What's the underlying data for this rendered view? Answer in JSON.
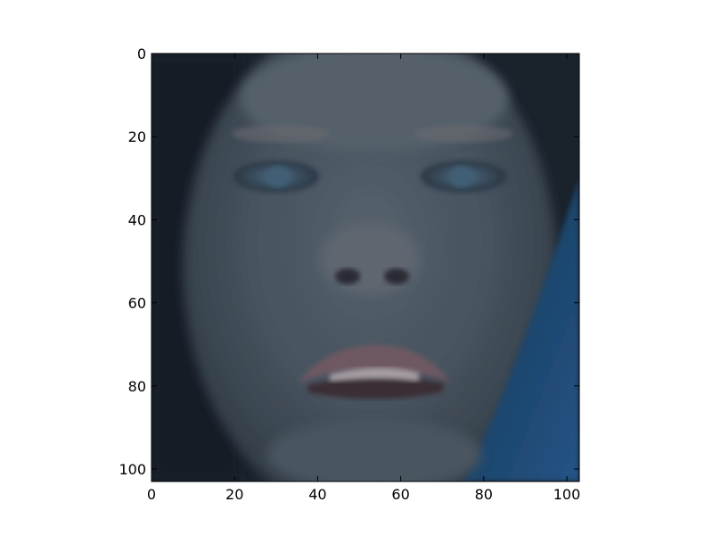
{
  "figure": {
    "image": {
      "subject": "close-up face",
      "palette": {
        "background_dark": "#141c24",
        "skin_mid": "#3e4a56",
        "skin_light": "#5a6672",
        "lips": "#6a5660",
        "blue_fabric": "#1e4a72"
      }
    },
    "axes": {
      "x": {
        "ticks": [
          0,
          20,
          40,
          60,
          80,
          100
        ],
        "range": [
          0,
          103
        ]
      },
      "y": {
        "ticks": [
          0,
          20,
          40,
          60,
          80,
          100
        ],
        "range": [
          0,
          103
        ],
        "inverted": true
      }
    }
  }
}
